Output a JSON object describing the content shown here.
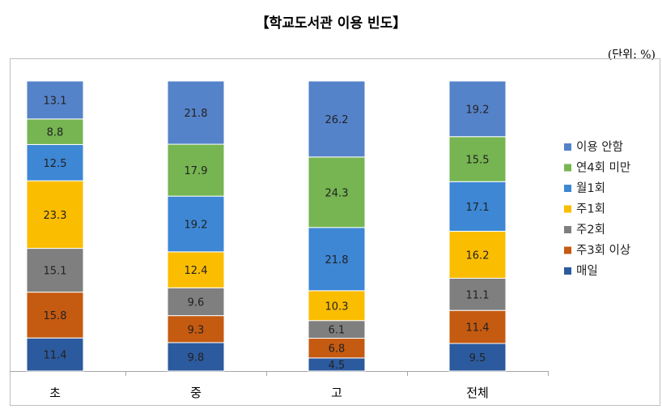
{
  "chart_data": {
    "type": "bar",
    "stacked": true,
    "title": "【학교도서관 이용 빈도】",
    "unit_label": "(단위: %)",
    "categories": [
      "초",
      "중",
      "고",
      "전체"
    ],
    "ylim": [
      0,
      100
    ],
    "legend_position": "right",
    "series": [
      {
        "name": "매일",
        "color": "#2c5a9e",
        "values": [
          11.4,
          9.8,
          4.5,
          9.5
        ]
      },
      {
        "name": "주3회 이상",
        "color": "#c55a11",
        "values": [
          15.8,
          9.3,
          6.8,
          11.4
        ]
      },
      {
        "name": "주2회",
        "color": "#7f7f7f",
        "values": [
          15.1,
          9.6,
          6.1,
          11.1
        ]
      },
      {
        "name": "주1회",
        "color": "#fbbd00",
        "values": [
          23.3,
          12.4,
          10.3,
          16.2
        ]
      },
      {
        "name": "월1회",
        "color": "#3d87d4",
        "values": [
          12.5,
          19.2,
          21.8,
          17.1
        ]
      },
      {
        "name": "연4회 미만",
        "color": "#76b551",
        "values": [
          8.8,
          17.9,
          24.3,
          15.5
        ]
      },
      {
        "name": "이용 안함",
        "color": "#5583c9",
        "values": [
          13.1,
          21.8,
          26.2,
          19.2
        ]
      }
    ]
  }
}
